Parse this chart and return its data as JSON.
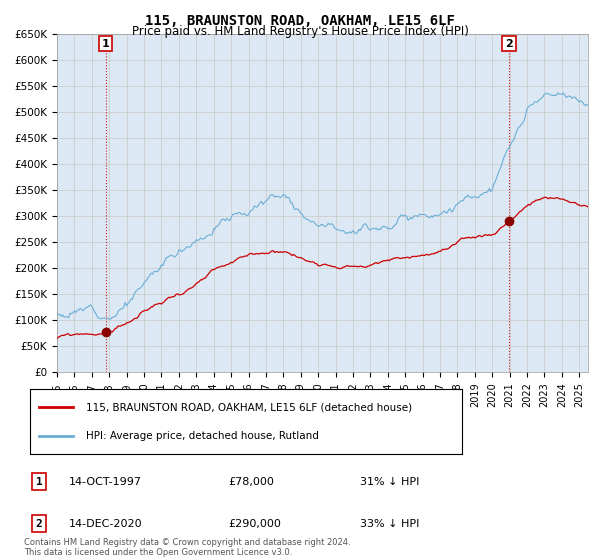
{
  "title1": "115, BRAUNSTON ROAD, OAKHAM, LE15 6LF",
  "title2": "Price paid vs. HM Land Registry's House Price Index (HPI)",
  "ylabel_ticks": [
    "£0",
    "£50K",
    "£100K",
    "£150K",
    "£200K",
    "£250K",
    "£300K",
    "£350K",
    "£400K",
    "£450K",
    "£500K",
    "£550K",
    "£600K",
    "£650K"
  ],
  "ytick_values": [
    0,
    50000,
    100000,
    150000,
    200000,
    250000,
    300000,
    350000,
    400000,
    450000,
    500000,
    550000,
    600000,
    650000
  ],
  "hpi_color": "#6baed6",
  "price_color": "#cc0000",
  "dashed_color": "#cc0000",
  "grid_color": "#cccccc",
  "plot_bg_color": "#dce9f5",
  "bg_color": "#ffffff",
  "legend_label_red": "115, BRAUNSTON ROAD, OAKHAM, LE15 6LF (detached house)",
  "legend_label_blue": "HPI: Average price, detached house, Rutland",
  "sale1_label": "1",
  "sale1_date": "14-OCT-1997",
  "sale1_price": "£78,000",
  "sale1_hpi": "31% ↓ HPI",
  "sale1_year": 1997.79,
  "sale1_value": 78000,
  "sale2_label": "2",
  "sale2_date": "14-DEC-2020",
  "sale2_price": "£290,000",
  "sale2_hpi": "33% ↓ HPI",
  "sale2_year": 2020.96,
  "sale2_value": 290000,
  "footnote": "Contains HM Land Registry data © Crown copyright and database right 2024.\nThis data is licensed under the Open Government Licence v3.0.",
  "xmin": 1995,
  "xmax": 2025.5,
  "ymin": 0,
  "ymax": 650000
}
